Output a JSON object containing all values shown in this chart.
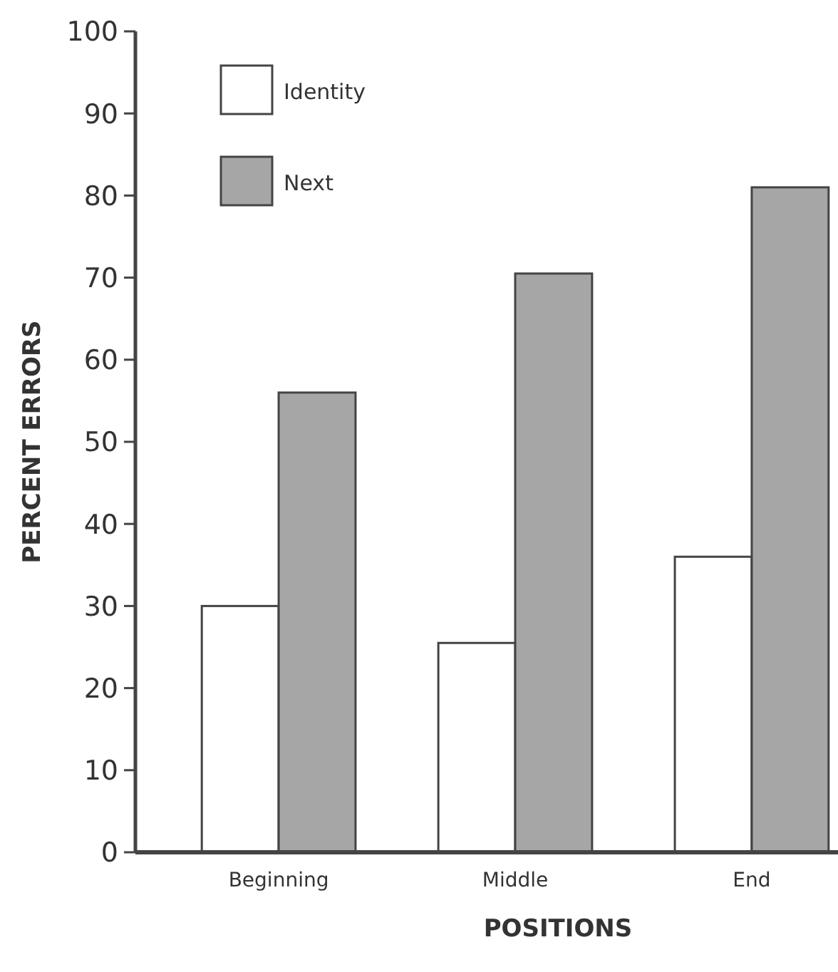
{
  "chart_data": {
    "type": "bar",
    "xlabel": "POSITIONS",
    "ylabel": "PERCENT ERRORS",
    "categories": [
      "Beginning",
      "Middle",
      "End"
    ],
    "series": [
      {
        "name": "Identity",
        "color": "#ffffff",
        "values": [
          30,
          25.5,
          36
        ]
      },
      {
        "name": "Next",
        "color": "#a6a6a6",
        "values": [
          56,
          70.5,
          81
        ]
      }
    ],
    "ylim": [
      0,
      100
    ],
    "yticks": [
      0,
      10,
      20,
      30,
      40,
      50,
      60,
      70,
      80,
      90,
      100
    ],
    "legend": "top left",
    "grid": false
  }
}
